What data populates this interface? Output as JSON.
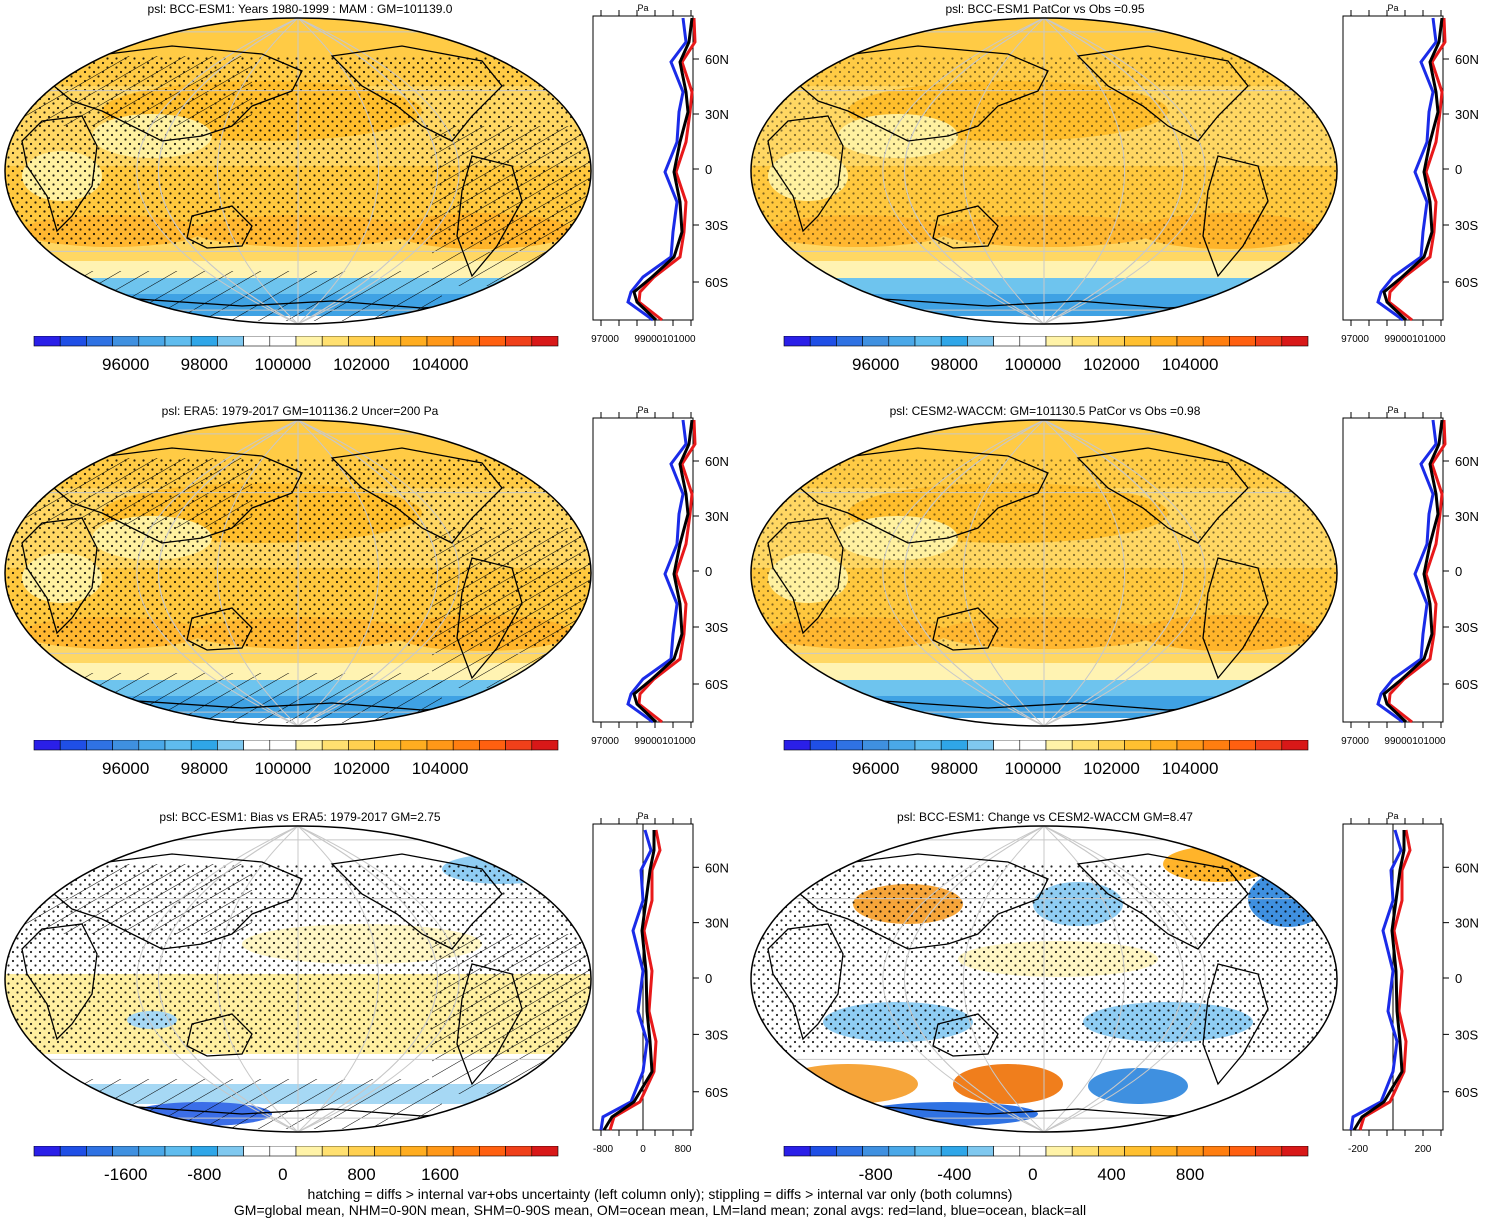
{
  "panels": [
    {
      "title": "psl: BCC-ESM1: Years 1980-1999 : MAM : GM=101139.0",
      "style": "full",
      "hatch": true,
      "colorbar_ticks": [
        "96000",
        "98000",
        "100000",
        "102000",
        "104000"
      ],
      "zonal": {
        "unit": "Pa",
        "ticks": [
          "97000",
          "99000101000"
        ],
        "mode": "full",
        "zero_line": false
      }
    },
    {
      "title": "psl: BCC-ESM1 PatCor vs Obs =0.95",
      "style": "full",
      "hatch": false,
      "colorbar_ticks": [
        "96000",
        "98000",
        "100000",
        "102000",
        "104000"
      ],
      "zonal": {
        "unit": "Pa",
        "ticks": [
          "97000",
          "99000101000"
        ],
        "mode": "full",
        "zero_line": false
      }
    },
    {
      "title": "psl: ERA5: 1979-2017 GM=101136.2 Uncer=200 Pa",
      "style": "full",
      "hatch": true,
      "colorbar_ticks": [
        "96000",
        "98000",
        "100000",
        "102000",
        "104000"
      ],
      "zonal": {
        "unit": "Pa",
        "ticks": [
          "97000",
          "99000101000"
        ],
        "mode": "full",
        "zero_line": false
      }
    },
    {
      "title": "psl: CESM2-WACCM: GM=101130.5 PatCor vs Obs =0.98",
      "style": "full",
      "hatch": false,
      "colorbar_ticks": [
        "96000",
        "98000",
        "100000",
        "102000",
        "104000"
      ],
      "zonal": {
        "unit": "Pa",
        "ticks": [
          "97000",
          "99000101000"
        ],
        "mode": "full",
        "zero_line": false
      }
    },
    {
      "title": "psl: BCC-ESM1: Bias vs ERA5: 1979-2017 GM=2.75",
      "style": "diff",
      "hatch": true,
      "colorbar_ticks": [
        "-1600",
        "-800",
        "0",
        "800",
        "1600"
      ],
      "zonal": {
        "unit": "Pa",
        "ticks": [
          "-800",
          "0",
          "800"
        ],
        "mode": "diff",
        "zero_line": true
      }
    },
    {
      "title": "psl: BCC-ESM1: Change vs CESM2-WACCM GM=8.47",
      "style": "diff",
      "hatch": false,
      "colorbar_ticks": [
        "-800",
        "-400",
        "0",
        "400",
        "800"
      ],
      "zonal": {
        "unit": "Pa",
        "ticks": [
          "-200",
          "200"
        ],
        "mode": "diff",
        "zero_line": true
      }
    }
  ],
  "latitude_labels": [
    "60N",
    "30N",
    "0",
    "30S",
    "60S"
  ],
  "colorbar_colors": [
    "#2a1fe8",
    "#1f4fe6",
    "#2f72e3",
    "#3f90e0",
    "#4aa8e8",
    "#5fbcee",
    "#2fa6e8",
    "#7fc8ef",
    "#ffffff",
    "#ffffff",
    "#fff3a8",
    "#ffe070",
    "#ffd050",
    "#ffc030",
    "#ffad20",
    "#ff9818",
    "#ff7e10",
    "#ff6010",
    "#f0401a",
    "#d81818"
  ],
  "legend_lines": {
    "land": "#e8191a",
    "ocean": "#1a2be8",
    "all": "#000000"
  },
  "footer": {
    "line1": "hatching = diffs > internal var+obs uncertainty (left column only); stippling = diffs > internal var only (both columns)",
    "line2": "GM=global mean, NHM=0-90N mean, SHM=0-90S mean, OM=ocean mean, LM=land mean; zonal avgs: red=land, blue=ocean, black=all"
  }
}
